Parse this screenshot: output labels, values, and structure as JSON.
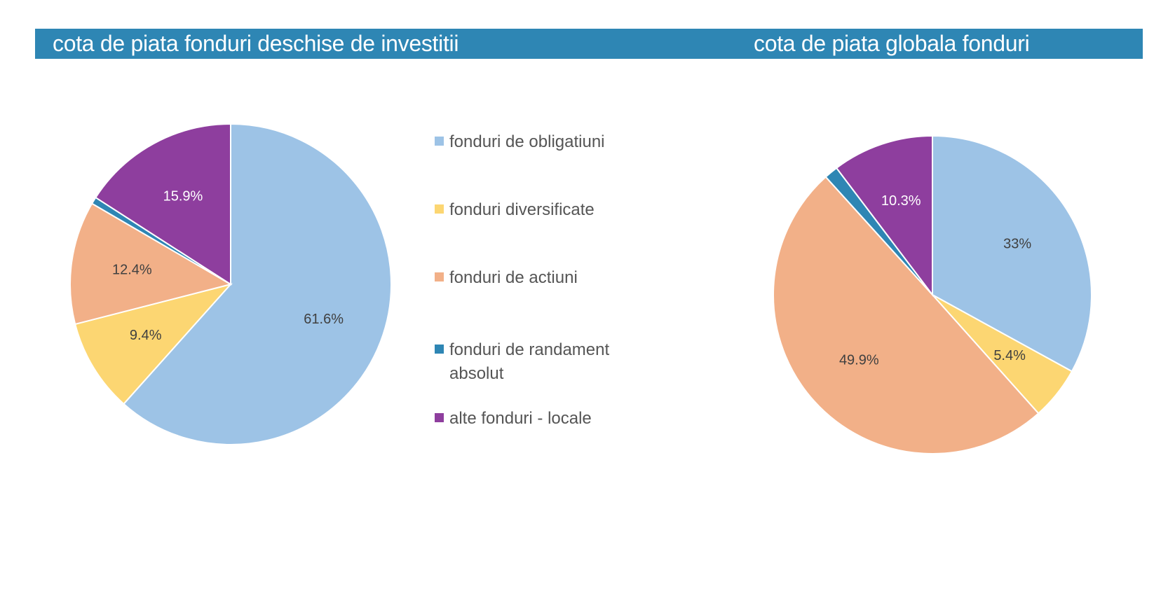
{
  "header": {
    "left_title": "cota de piata fonduri deschise de investitii",
    "right_title": "cota de piata globala fonduri"
  },
  "colors": {
    "header_band": "#2e86b4",
    "obligatiuni": "#9dc3e6",
    "diversificate": "#fcd672",
    "actiuni": "#f2b088",
    "randament_absolut": "#2e86b4",
    "alte_fonduri": "#8e3e9e"
  },
  "legend": [
    {
      "label": "fonduri de obligatiuni",
      "color": "#9dc3e6"
    },
    {
      "label": "fonduri diversificate",
      "color": "#fcd672"
    },
    {
      "label": "fonduri de actiuni",
      "color": "#f2b088"
    },
    {
      "label": "fonduri de randament absolut",
      "color": "#2e86b4"
    },
    {
      "label": "alte fonduri - locale",
      "color": "#8e3e9e"
    }
  ],
  "chart_data": [
    {
      "type": "pie",
      "title": "cota de piata fonduri deschise de investitii",
      "categories": [
        "fonduri de obligatiuni",
        "fonduri diversificate",
        "fonduri de actiuni",
        "fonduri de randament absolut",
        "alte fonduri - locale"
      ],
      "values": [
        61.6,
        9.4,
        12.4,
        0.7,
        15.9
      ],
      "labels": [
        "61.6%",
        "9.4%",
        "12.4%",
        "",
        "15.9%"
      ],
      "colors": [
        "#9dc3e6",
        "#fcd672",
        "#f2b088",
        "#2e86b4",
        "#8e3e9e"
      ],
      "label_colors": [
        "#404040",
        "#404040",
        "#404040",
        "#404040",
        "#ffffff"
      ]
    },
    {
      "type": "pie",
      "title": "cota de piata globala fonduri",
      "categories": [
        "fonduri de obligatiuni",
        "fonduri diversificate",
        "fonduri de actiuni",
        "fonduri de randament absolut",
        "alte fonduri - locale"
      ],
      "values": [
        33,
        5.4,
        49.9,
        1.4,
        10.3
      ],
      "labels": [
        "33%",
        "5.4%",
        "49.9%",
        "",
        "10.3%"
      ],
      "colors": [
        "#9dc3e6",
        "#fcd672",
        "#f2b088",
        "#2e86b4",
        "#8e3e9e"
      ],
      "label_colors": [
        "#404040",
        "#404040",
        "#404040",
        "#404040",
        "#ffffff"
      ]
    }
  ]
}
